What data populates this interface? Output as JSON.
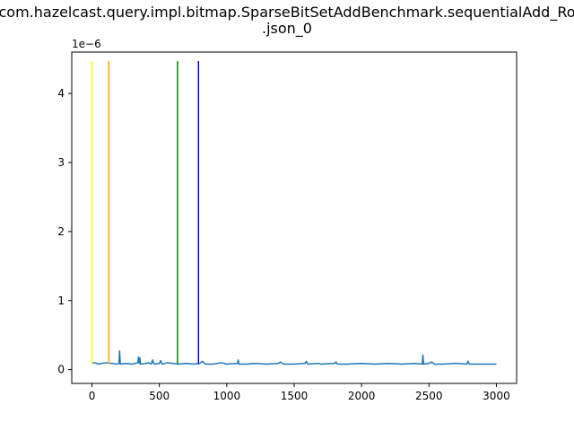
{
  "chart_data": {
    "type": "line",
    "title_line1": "com.hazelcast.query.impl.bitmap.SparseBitSetAddBenchmark.sequentialAdd_Ro",
    "title_line2": ".json_0",
    "xlabel": "",
    "ylabel": "",
    "offset_text": "1e−6",
    "xlim": [
      -150,
      3150
    ],
    "ylim": [
      -0.2,
      4.6
    ],
    "x_ticks": [
      0,
      500,
      1000,
      1500,
      2000,
      2500,
      3000
    ],
    "y_ticks": [
      0,
      1,
      2,
      3,
      4
    ],
    "grid": false,
    "legend": "none",
    "series": [
      {
        "color": "#1f77b4",
        "points": [
          [
            0,
            0.09
          ],
          [
            20,
            0.1
          ],
          [
            50,
            0.08
          ],
          [
            100,
            0.1
          ],
          [
            150,
            0.09
          ],
          [
            180,
            0.08
          ],
          [
            200,
            0.09
          ],
          [
            205,
            0.27
          ],
          [
            210,
            0.08
          ],
          [
            250,
            0.09
          ],
          [
            300,
            0.08
          ],
          [
            340,
            0.1
          ],
          [
            345,
            0.18
          ],
          [
            350,
            0.09
          ],
          [
            355,
            0.17
          ],
          [
            360,
            0.08
          ],
          [
            400,
            0.09
          ],
          [
            420,
            0.1
          ],
          [
            440,
            0.08
          ],
          [
            450,
            0.14
          ],
          [
            460,
            0.08
          ],
          [
            500,
            0.09
          ],
          [
            510,
            0.13
          ],
          [
            520,
            0.08
          ],
          [
            560,
            0.1
          ],
          [
            600,
            0.09
          ],
          [
            640,
            0.08
          ],
          [
            700,
            0.09
          ],
          [
            760,
            0.08
          ],
          [
            800,
            0.09
          ],
          [
            820,
            0.12
          ],
          [
            840,
            0.08
          ],
          [
            900,
            0.08
          ],
          [
            960,
            0.1
          ],
          [
            1000,
            0.08
          ],
          [
            1080,
            0.09
          ],
          [
            1085,
            0.14
          ],
          [
            1090,
            0.08
          ],
          [
            1150,
            0.08
          ],
          [
            1200,
            0.09
          ],
          [
            1300,
            0.08
          ],
          [
            1380,
            0.09
          ],
          [
            1400,
            0.11
          ],
          [
            1420,
            0.08
          ],
          [
            1500,
            0.08
          ],
          [
            1580,
            0.09
          ],
          [
            1590,
            0.12
          ],
          [
            1600,
            0.08
          ],
          [
            1680,
            0.09
          ],
          [
            1700,
            0.08
          ],
          [
            1800,
            0.09
          ],
          [
            1810,
            0.11
          ],
          [
            1820,
            0.08
          ],
          [
            1900,
            0.08
          ],
          [
            2000,
            0.09
          ],
          [
            2100,
            0.08
          ],
          [
            2200,
            0.09
          ],
          [
            2300,
            0.08
          ],
          [
            2400,
            0.09
          ],
          [
            2450,
            0.08
          ],
          [
            2455,
            0.21
          ],
          [
            2460,
            0.08
          ],
          [
            2500,
            0.09
          ],
          [
            2520,
            0.11
          ],
          [
            2540,
            0.08
          ],
          [
            2600,
            0.08
          ],
          [
            2700,
            0.09
          ],
          [
            2780,
            0.08
          ],
          [
            2790,
            0.12
          ],
          [
            2800,
            0.08
          ],
          [
            2900,
            0.08
          ],
          [
            3000,
            0.08
          ]
        ]
      }
    ],
    "vlines": [
      {
        "x": 0,
        "y0": 0.08,
        "y1": 4.47,
        "color": "#ffff00"
      },
      {
        "x": 125,
        "y0": 0.08,
        "y1": 4.47,
        "color": "#ffa500"
      },
      {
        "x": 635,
        "y0": 0.08,
        "y1": 4.47,
        "color": "#008000"
      },
      {
        "x": 790,
        "y0": 0.08,
        "y1": 4.47,
        "color": "#0000ff"
      }
    ]
  }
}
